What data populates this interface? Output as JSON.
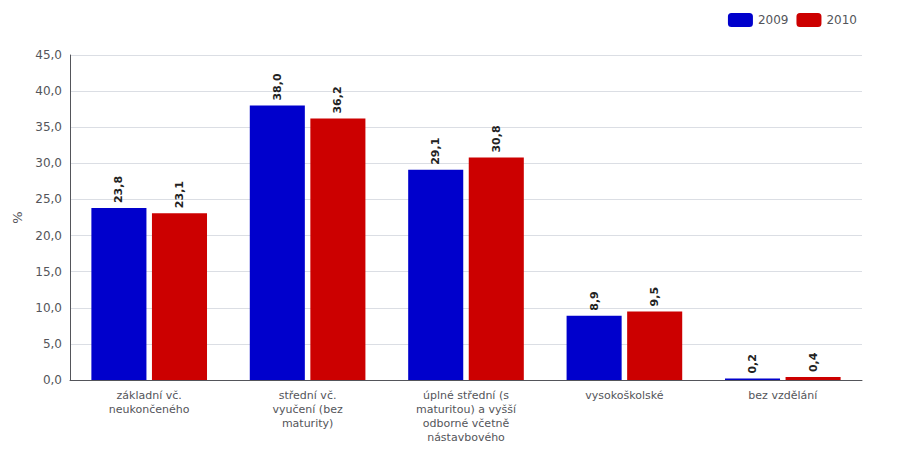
{
  "chart_data": {
    "type": "bar",
    "categories": [
      "základní vč.\nneukončeného",
      "střední vč.\nvyučení (bez\nmaturity)",
      "úplné střední (s\nmaturitou) a vyšší\nodborné včetně\nnástavbového",
      "vysokoškolské",
      "bez vzdělání"
    ],
    "series": [
      {
        "name": "2009",
        "color": "#0000CC",
        "values": [
          23.8,
          38.0,
          29.1,
          8.9,
          0.2
        ],
        "value_labels": [
          "23,8",
          "38,0",
          "29,1",
          "8,9",
          "0,2"
        ]
      },
      {
        "name": "2010",
        "color": "#CC0000",
        "values": [
          23.1,
          36.2,
          30.8,
          9.5,
          0.4
        ],
        "value_labels": [
          "23,1",
          "36,2",
          "30,8",
          "9,5",
          "0,4"
        ]
      }
    ],
    "ylabel": "%",
    "ylim": [
      0,
      45
    ],
    "yticks": [
      {
        "value": 0,
        "label": "0,0"
      },
      {
        "value": 5,
        "label": "5,0"
      },
      {
        "value": 10,
        "label": "10,0"
      },
      {
        "value": 15,
        "label": "15,0"
      },
      {
        "value": 20,
        "label": "20,0"
      },
      {
        "value": 25,
        "label": "25,0"
      },
      {
        "value": 30,
        "label": "30,0"
      },
      {
        "value": 35,
        "label": "35,0"
      },
      {
        "value": 40,
        "label": "40,0"
      },
      {
        "value": 45,
        "label": "45,0"
      }
    ],
    "grid": true,
    "legend": "upper right",
    "data_labels": true
  }
}
